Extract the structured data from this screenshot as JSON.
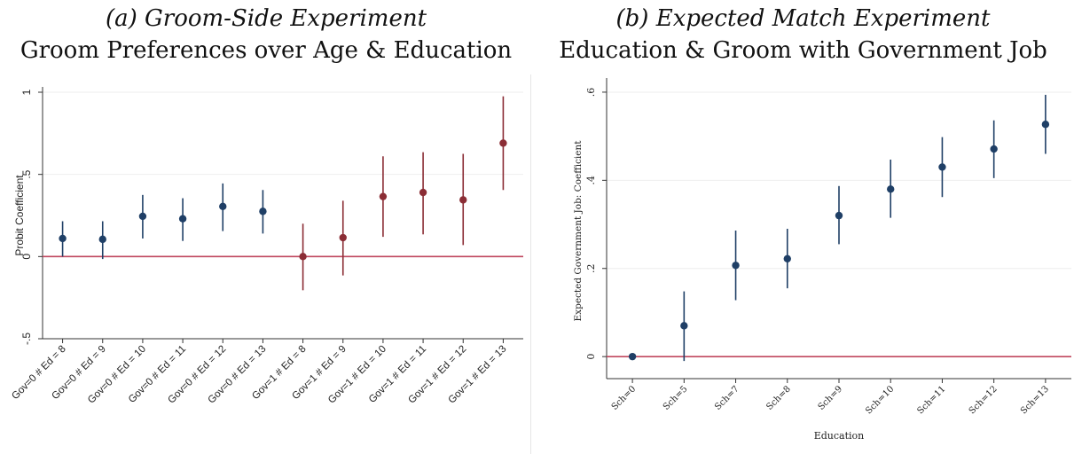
{
  "panel_a": {
    "title_line1": "(a) Groom-Side Experiment",
    "title_line2": "Groom Preferences over Age & Education"
  },
  "panel_b": {
    "title_line1": "(b) Expected Match Experiment",
    "title_line2": "Education & Groom with Government Job"
  },
  "colors": {
    "navy": "#1f3f66",
    "maroon": "#8b2d35",
    "zero_line": "#c0475e",
    "grid": "#eeeeee"
  },
  "chart_data": [
    {
      "type": "scatter",
      "subtype": "coefficient-plot",
      "title": "(a) Groom-Side Experiment — Groom Preferences over Age & Education",
      "xlabel": "",
      "ylabel": "Probit Coefficient",
      "ylim": [
        -0.5,
        1
      ],
      "yticks": [
        -0.5,
        0,
        0.5,
        1
      ],
      "ytick_labels": [
        "-.5",
        "0",
        ".5",
        "1"
      ],
      "categories": [
        "Gov=0 # Ed = 8",
        "Gov=0 # Ed = 9",
        "Gov=0 # Ed = 10",
        "Gov=0 # Ed = 11",
        "Gov=0 # Ed = 12",
        "Gov=0 # Ed = 13",
        "Gov=1 # Ed = 8",
        "Gov=1 # Ed = 9",
        "Gov=1 # Ed = 10",
        "Gov=1 # Ed = 11",
        "Gov=1 # Ed = 12",
        "Gov=1 # Ed = 13"
      ],
      "values": [
        0.11,
        0.105,
        0.245,
        0.23,
        0.305,
        0.275,
        0.0,
        0.115,
        0.365,
        0.39,
        0.345,
        0.69
      ],
      "ci_low": [
        0.0,
        -0.015,
        0.11,
        0.095,
        0.155,
        0.14,
        -0.205,
        -0.115,
        0.12,
        0.135,
        0.07,
        0.405
      ],
      "ci_high": [
        0.215,
        0.215,
        0.375,
        0.355,
        0.445,
        0.405,
        0.2,
        0.34,
        0.61,
        0.635,
        0.625,
        0.975
      ],
      "groups": [
        "Gov=0",
        "Gov=0",
        "Gov=0",
        "Gov=0",
        "Gov=0",
        "Gov=0",
        "Gov=1",
        "Gov=1",
        "Gov=1",
        "Gov=1",
        "Gov=1",
        "Gov=1"
      ],
      "reference_line": 0,
      "grid": true
    },
    {
      "type": "scatter",
      "subtype": "coefficient-plot",
      "title": "(b) Expected Match Experiment — Education & Groom with Government Job",
      "xlabel": "Education",
      "ylabel": "Expected Government Job: Coefficient",
      "ylim": [
        -0.05,
        0.62
      ],
      "yticks": [
        0,
        0.2,
        0.4,
        0.6
      ],
      "ytick_labels": [
        "0",
        ".2",
        ".4",
        ".6"
      ],
      "categories": [
        "Sch=0",
        "Sch=5",
        "Sch=7",
        "Sch=8",
        "Sch=9",
        "Sch=10",
        "Sch=11",
        "Sch=12",
        "Sch=13"
      ],
      "values": [
        0.0,
        0.07,
        0.207,
        0.222,
        0.32,
        0.38,
        0.43,
        0.471,
        0.527
      ],
      "ci_low": [
        0.0,
        -0.01,
        0.128,
        0.155,
        0.255,
        0.315,
        0.362,
        0.405,
        0.46
      ],
      "ci_high": [
        0.0,
        0.148,
        0.286,
        0.29,
        0.387,
        0.447,
        0.498,
        0.536,
        0.594
      ],
      "reference_line": 0,
      "grid": true
    }
  ]
}
